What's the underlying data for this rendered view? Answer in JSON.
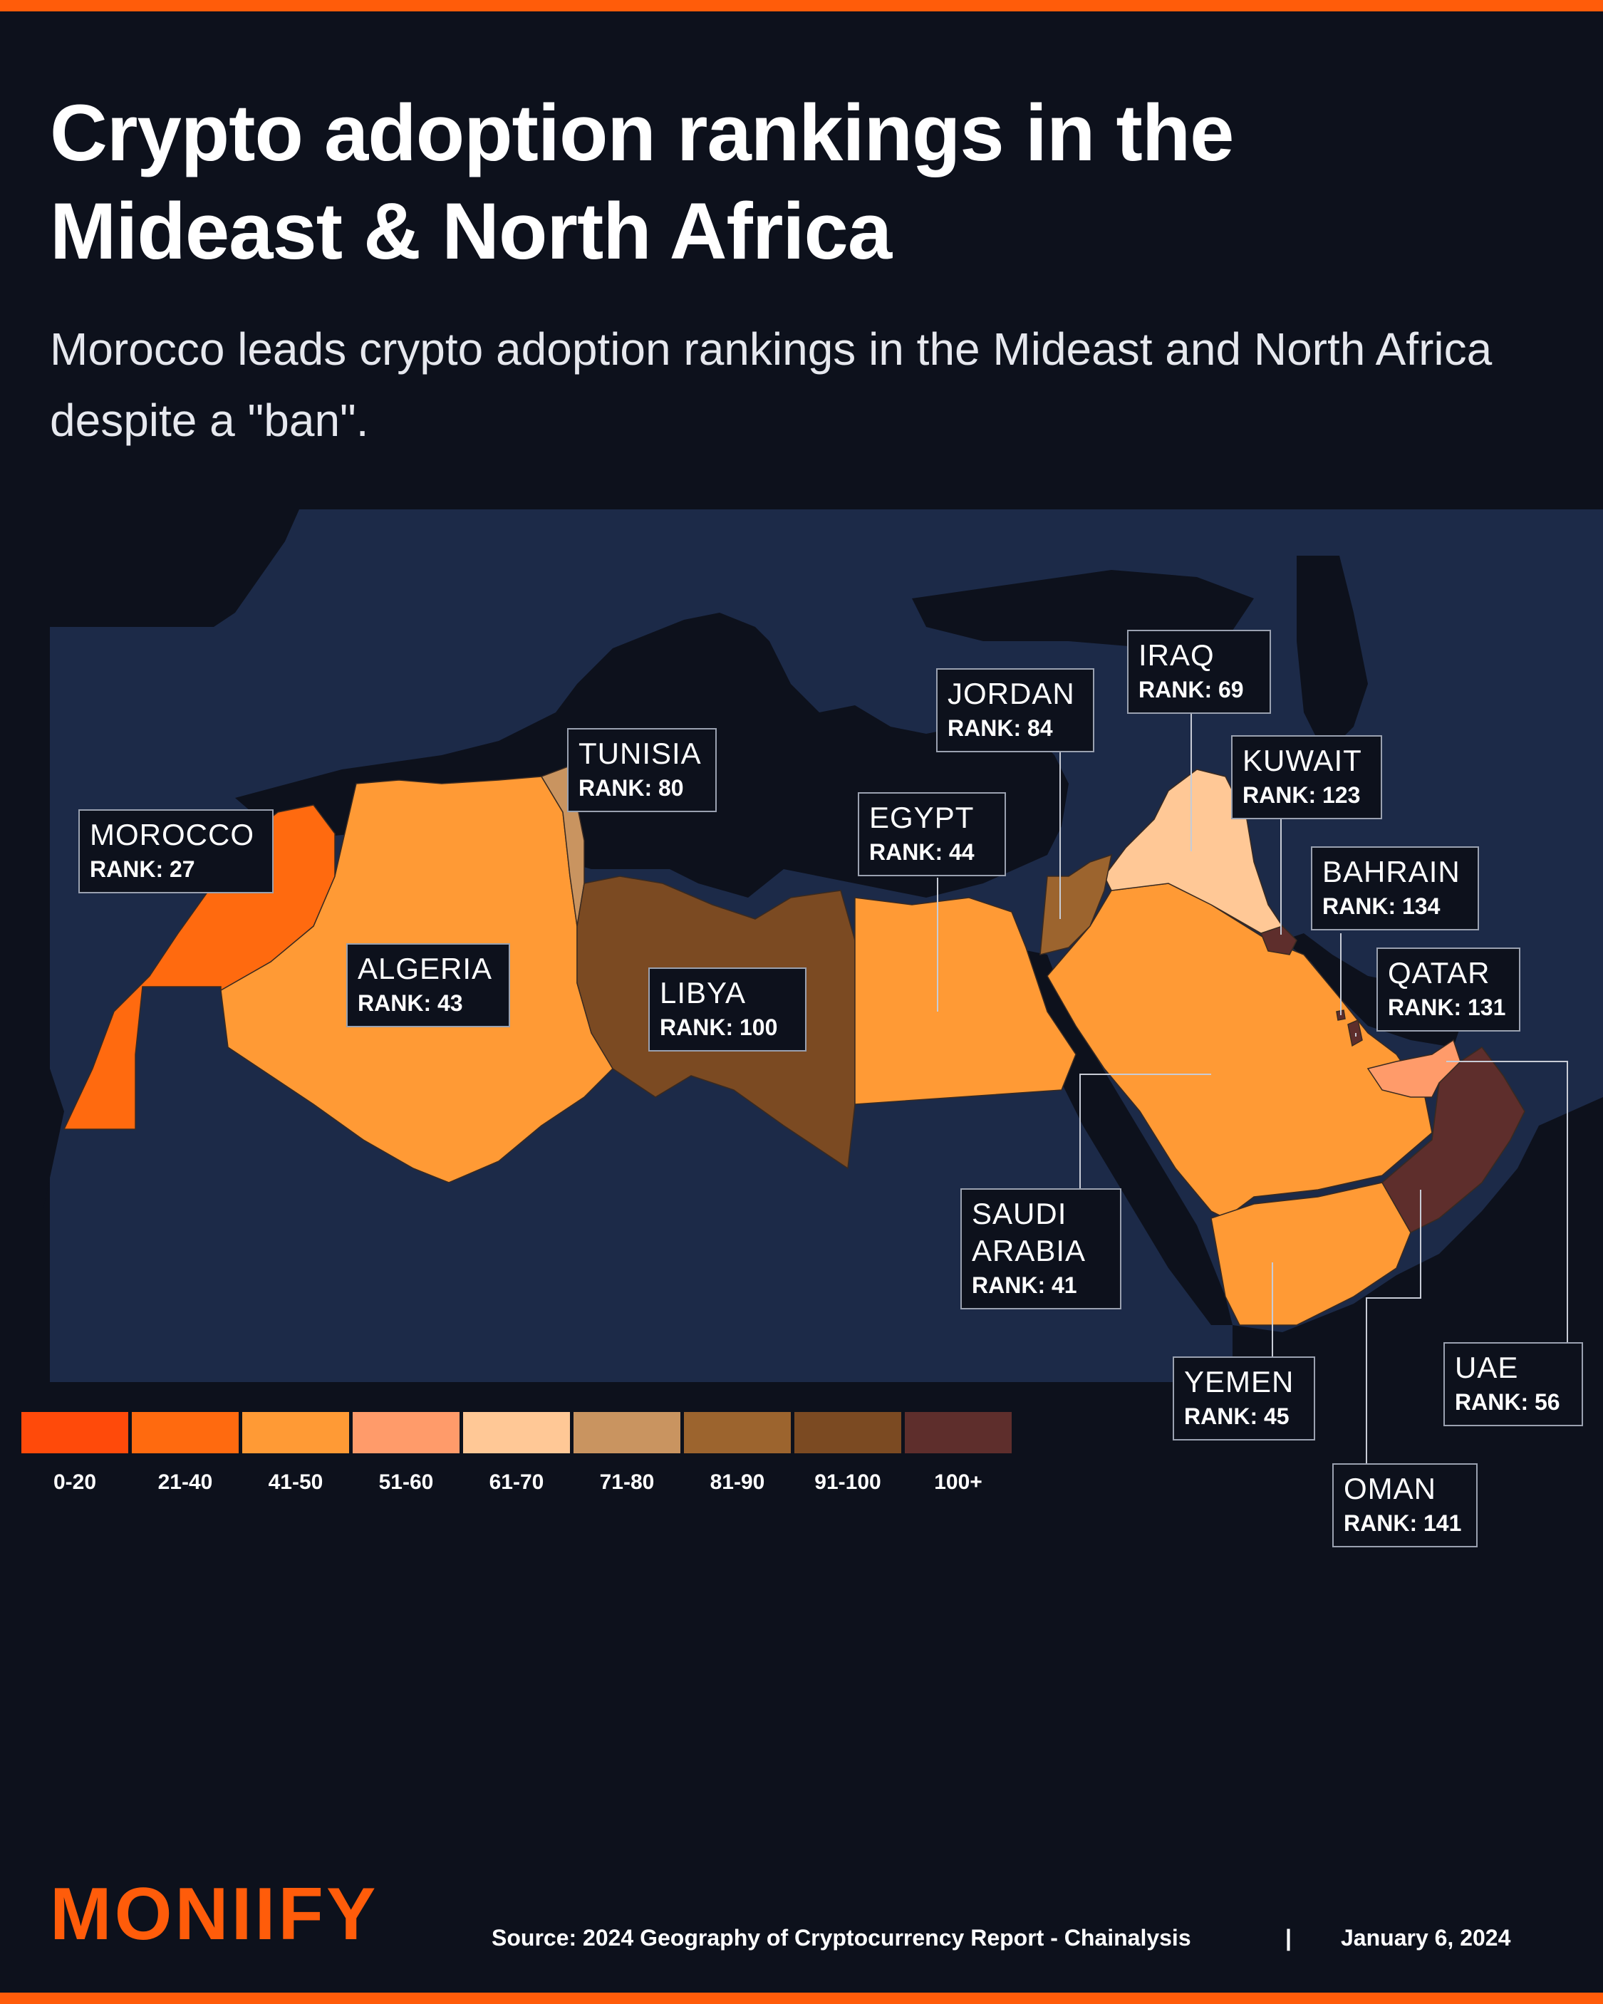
{
  "header": {
    "title": "Crypto adoption rankings in the Mideast & North Africa",
    "subtitle": "Morocco leads crypto adoption rankings in the Mideast and North Africa despite a \"ban\"."
  },
  "colors": {
    "accent": "#ff5c0a",
    "background": "#0d111c",
    "map_land": "#1c2a48",
    "map_sea": "#0d111c",
    "label_border": "#9aa1b0"
  },
  "legend": [
    {
      "label": "0-20",
      "color": "#ff4a0a"
    },
    {
      "label": "21-40",
      "color": "#ff6a0f"
    },
    {
      "label": "41-50",
      "color": "#ff9a35"
    },
    {
      "label": "51-60",
      "color": "#ff9b6a"
    },
    {
      "label": "61-70",
      "color": "#ffc896"
    },
    {
      "label": "71-80",
      "color": "#c99460"
    },
    {
      "label": "81-90",
      "color": "#9c642e"
    },
    {
      "label": "91-100",
      "color": "#7b4a22"
    },
    {
      "label": "100+",
      "color": "#5e2e2c"
    }
  ],
  "countries": [
    {
      "id": "morocco",
      "name": "MOROCCO",
      "rank_text": "RANK: 27",
      "rank": 27,
      "color": "#ff6a0f"
    },
    {
      "id": "algeria",
      "name": "ALGERIA",
      "rank_text": "RANK: 43",
      "rank": 43,
      "color": "#ff9a35"
    },
    {
      "id": "tunisia",
      "name": "TUNISIA",
      "rank_text": "RANK: 80",
      "rank": 80,
      "color": "#c99460"
    },
    {
      "id": "libya",
      "name": "LIBYA",
      "rank_text": "RANK: 100",
      "rank": 100,
      "color": "#7b4a22"
    },
    {
      "id": "egypt",
      "name": "EGYPT",
      "rank_text": "RANK: 44",
      "rank": 44,
      "color": "#ff9a35"
    },
    {
      "id": "jordan",
      "name": "JORDAN",
      "rank_text": "RANK: 84",
      "rank": 84,
      "color": "#9c642e"
    },
    {
      "id": "iraq",
      "name": "IRAQ",
      "rank_text": "RANK: 69",
      "rank": 69,
      "color": "#ffc896"
    },
    {
      "id": "kuwait",
      "name": "KUWAIT",
      "rank_text": "RANK: 123",
      "rank": 123,
      "color": "#5e2e2c"
    },
    {
      "id": "bahrain",
      "name": "BAHRAIN",
      "rank_text": "RANK: 134",
      "rank": 134,
      "color": "#5e2e2c"
    },
    {
      "id": "qatar",
      "name": "QATAR",
      "rank_text": "RANK: 131",
      "rank": 131,
      "color": "#5e2e2c"
    },
    {
      "id": "saudi",
      "name": "SAUDI ARABIA",
      "rank_text": "RANK: 41",
      "rank": 41,
      "color": "#ff9a35"
    },
    {
      "id": "yemen",
      "name": "YEMEN",
      "rank_text": "RANK: 45",
      "rank": 45,
      "color": "#ff9a35"
    },
    {
      "id": "oman",
      "name": "OMAN",
      "rank_text": "RANK: 141",
      "rank": 141,
      "color": "#5e2e2c"
    },
    {
      "id": "uae",
      "name": "UAE",
      "rank_text": "RANK: 56",
      "rank": 56,
      "color": "#ff9b6a"
    }
  ],
  "footer": {
    "logo": "MONIIFY",
    "source": "Source: 2024 Geography of Cryptocurrency Report - Chainalysis",
    "separator": "|",
    "date": "January 6, 2024"
  }
}
